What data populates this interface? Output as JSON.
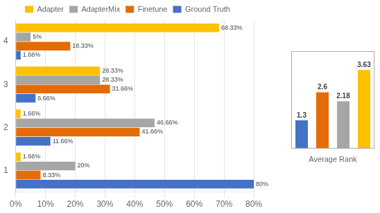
{
  "chart_data": [
    {
      "type": "bar",
      "orientation": "horizontal",
      "categories": [
        "1",
        "2",
        "3",
        "4"
      ],
      "series": [
        {
          "name": "Adapter",
          "color": "#FFC000",
          "values": [
            1.66,
            1.66,
            28.33,
            68.33
          ],
          "value_labels": [
            "1.66%",
            "1.66%",
            "28.33%",
            "68.33%"
          ]
        },
        {
          "name": "AdapterMix",
          "color": "#A6A6A6",
          "values": [
            20.0,
            46.66,
            28.33,
            5.0
          ],
          "value_labels": [
            "20%",
            "46.66%",
            "28.33%",
            "5%"
          ]
        },
        {
          "name": "Finetune",
          "color": "#E36C09",
          "values": [
            8.33,
            41.66,
            31.66,
            18.33
          ],
          "value_labels": [
            "8.33%",
            "41.66%",
            "31.66%",
            "18.33%"
          ]
        },
        {
          "name": "Ground Truth",
          "color": "#4472C4",
          "values": [
            80.0,
            11.66,
            6.66,
            1.66
          ],
          "value_labels": [
            "80%",
            "11.66%",
            "6.66%",
            "1.66%"
          ]
        }
      ],
      "xlim": [
        0,
        80
      ],
      "xticks": [
        {
          "value": 0,
          "label": "0%"
        },
        {
          "value": 10,
          "label": "10%"
        },
        {
          "value": 20,
          "label": "20%"
        },
        {
          "value": 30,
          "label": "30%"
        },
        {
          "value": 40,
          "label": "40%"
        },
        {
          "value": 50,
          "label": "50%"
        },
        {
          "value": 60,
          "label": "60%"
        },
        {
          "value": 70,
          "label": "70%"
        },
        {
          "value": 80,
          "label": "80%"
        }
      ],
      "grid": true,
      "legend": "top",
      "data_labels": true
    },
    {
      "type": "bar",
      "categories": [
        null,
        null,
        null,
        null
      ],
      "values": [
        1.3,
        2.6,
        2.18,
        3.63
      ],
      "colors": [
        "#4472C4",
        "#E36C09",
        "#A6A6A6",
        "#FFC000"
      ],
      "xlabel": "Average Rank",
      "ylim": [
        0,
        4.5
      ],
      "tick_labels": false,
      "grid": false,
      "data_labels": true
    }
  ]
}
